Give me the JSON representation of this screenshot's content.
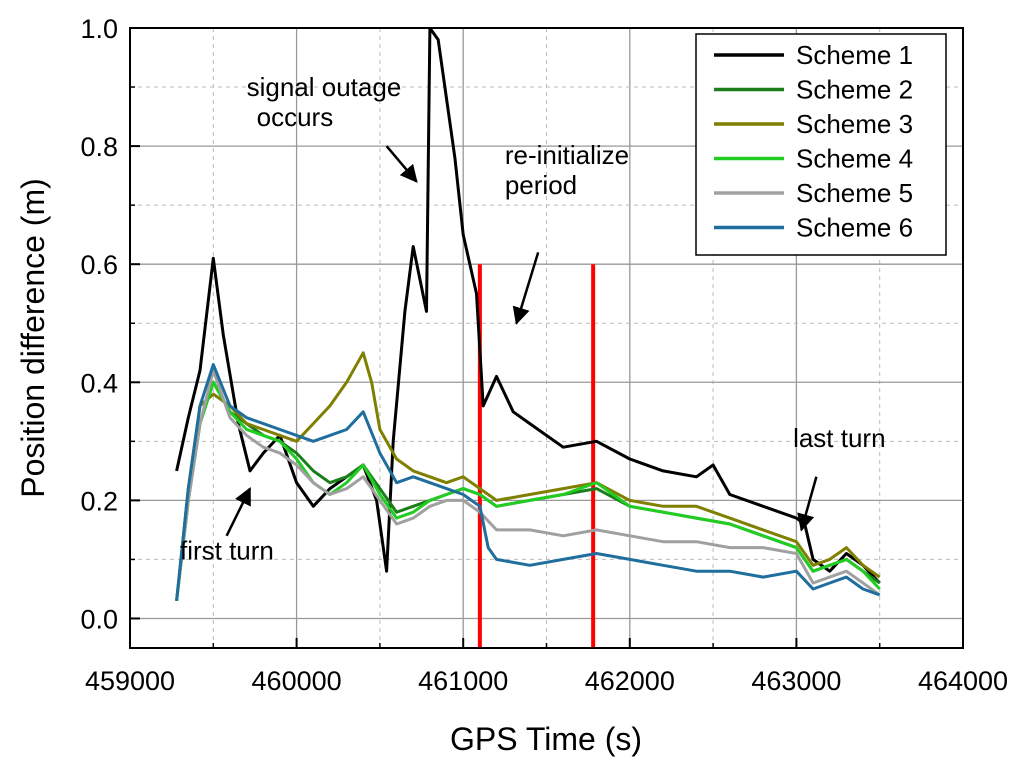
{
  "chart_data": {
    "type": "line",
    "title": "",
    "xlabel": "GPS Time (s)",
    "ylabel": "Position difference (m)",
    "xlim": [
      459000,
      464000
    ],
    "ylim": [
      -0.05,
      1.0
    ],
    "xticks": [
      459000,
      460000,
      461000,
      462000,
      463000,
      464000
    ],
    "xtick_labels": [
      "459000",
      "460000",
      "461000",
      "462000",
      "463000",
      "464000"
    ],
    "yticks": [
      0.0,
      0.2,
      0.4,
      0.6,
      0.8,
      1.0
    ],
    "ytick_labels": [
      "0.0",
      "0.2",
      "0.4",
      "0.6",
      "0.8",
      "1.0"
    ],
    "grid": true,
    "legend_position": "top-right",
    "series": [
      {
        "name": "Scheme 1",
        "color": "#000000",
        "x": [
          459280,
          459350,
          459420,
          459500,
          459560,
          459650,
          459720,
          459800,
          459900,
          460000,
          460100,
          460200,
          460300,
          460400,
          460480,
          460540,
          460580,
          460650,
          460700,
          460780,
          460800,
          460850,
          460950,
          461000,
          461080,
          461120,
          461200,
          461300,
          461400,
          461600,
          461800,
          462000,
          462200,
          462400,
          462500,
          462600,
          462800,
          463000,
          463050,
          463100,
          463200,
          463300,
          463400,
          463500
        ],
        "y": [
          0.25,
          0.34,
          0.42,
          0.61,
          0.48,
          0.33,
          0.25,
          0.28,
          0.31,
          0.23,
          0.19,
          0.22,
          0.24,
          0.26,
          0.2,
          0.08,
          0.3,
          0.52,
          0.63,
          0.52,
          1.0,
          0.98,
          0.78,
          0.65,
          0.55,
          0.36,
          0.41,
          0.35,
          0.33,
          0.29,
          0.3,
          0.27,
          0.25,
          0.24,
          0.26,
          0.21,
          0.19,
          0.17,
          0.16,
          0.1,
          0.08,
          0.11,
          0.09,
          0.06
        ]
      },
      {
        "name": "Scheme 2",
        "color": "#1a7f1a",
        "x": [
          459280,
          459350,
          459420,
          459500,
          459600,
          459700,
          459800,
          459900,
          460000,
          460100,
          460200,
          460300,
          460400,
          460500,
          460600,
          460700,
          460800,
          460900,
          461000,
          461100,
          461200,
          461400,
          461600,
          461800,
          462000,
          462200,
          462400,
          462600,
          462800,
          463000,
          463100,
          463200,
          463300,
          463400,
          463500
        ],
        "y": [
          0.03,
          0.2,
          0.33,
          0.4,
          0.35,
          0.33,
          0.31,
          0.3,
          0.28,
          0.25,
          0.23,
          0.24,
          0.26,
          0.22,
          0.18,
          0.19,
          0.2,
          0.21,
          0.22,
          0.21,
          0.19,
          0.2,
          0.21,
          0.22,
          0.19,
          0.18,
          0.17,
          0.16,
          0.14,
          0.12,
          0.08,
          0.09,
          0.1,
          0.08,
          0.06
        ]
      },
      {
        "name": "Scheme 3",
        "color": "#7f7f00",
        "x": [
          459280,
          459350,
          459420,
          459500,
          459600,
          459700,
          459800,
          459900,
          460000,
          460100,
          460200,
          460300,
          460400,
          460450,
          460500,
          460600,
          460700,
          460800,
          460900,
          461000,
          461100,
          461200,
          461400,
          461600,
          461800,
          462000,
          462200,
          462400,
          462600,
          462800,
          463000,
          463100,
          463200,
          463300,
          463400,
          463500
        ],
        "y": [
          0.03,
          0.22,
          0.36,
          0.38,
          0.36,
          0.33,
          0.32,
          0.31,
          0.3,
          0.33,
          0.36,
          0.4,
          0.45,
          0.4,
          0.32,
          0.27,
          0.25,
          0.24,
          0.23,
          0.24,
          0.22,
          0.2,
          0.21,
          0.22,
          0.23,
          0.2,
          0.19,
          0.19,
          0.17,
          0.15,
          0.13,
          0.09,
          0.1,
          0.12,
          0.09,
          0.07
        ]
      },
      {
        "name": "Scheme 4",
        "color": "#22cc22",
        "x": [
          459280,
          459350,
          459420,
          459500,
          459600,
          459700,
          459800,
          459900,
          460000,
          460100,
          460200,
          460300,
          460400,
          460500,
          460600,
          460700,
          460800,
          460900,
          461000,
          461100,
          461200,
          461400,
          461600,
          461800,
          462000,
          462200,
          462400,
          462600,
          462800,
          463000,
          463100,
          463200,
          463300,
          463400,
          463500
        ],
        "y": [
          0.03,
          0.2,
          0.33,
          0.4,
          0.35,
          0.32,
          0.31,
          0.3,
          0.27,
          0.23,
          0.21,
          0.23,
          0.26,
          0.21,
          0.17,
          0.18,
          0.2,
          0.21,
          0.22,
          0.21,
          0.19,
          0.2,
          0.21,
          0.23,
          0.19,
          0.18,
          0.17,
          0.16,
          0.14,
          0.12,
          0.08,
          0.09,
          0.1,
          0.08,
          0.05
        ]
      },
      {
        "name": "Scheme 5",
        "color": "#a0a0a0",
        "x": [
          459280,
          459350,
          459420,
          459500,
          459600,
          459700,
          459800,
          459900,
          460000,
          460100,
          460200,
          460300,
          460400,
          460500,
          460600,
          460700,
          460800,
          460900,
          461000,
          461100,
          461200,
          461400,
          461600,
          461800,
          462000,
          462200,
          462400,
          462600,
          462800,
          463000,
          463100,
          463200,
          463300,
          463400,
          463500
        ],
        "y": [
          0.03,
          0.2,
          0.33,
          0.42,
          0.34,
          0.31,
          0.29,
          0.28,
          0.26,
          0.23,
          0.21,
          0.22,
          0.24,
          0.2,
          0.16,
          0.17,
          0.19,
          0.2,
          0.2,
          0.18,
          0.15,
          0.15,
          0.14,
          0.15,
          0.14,
          0.13,
          0.13,
          0.12,
          0.12,
          0.11,
          0.06,
          0.07,
          0.08,
          0.06,
          0.04
        ]
      },
      {
        "name": "Scheme 6",
        "color": "#1f6e9e",
        "x": [
          459280,
          459350,
          459420,
          459500,
          459600,
          459700,
          459800,
          459900,
          460000,
          460100,
          460200,
          460300,
          460400,
          460500,
          460600,
          460700,
          460800,
          460900,
          461000,
          461100,
          461150,
          461200,
          461400,
          461600,
          461800,
          462000,
          462200,
          462400,
          462600,
          462800,
          463000,
          463100,
          463200,
          463300,
          463400,
          463500
        ],
        "y": [
          0.03,
          0.22,
          0.36,
          0.43,
          0.36,
          0.34,
          0.33,
          0.32,
          0.31,
          0.3,
          0.31,
          0.32,
          0.35,
          0.28,
          0.23,
          0.24,
          0.23,
          0.22,
          0.21,
          0.19,
          0.12,
          0.1,
          0.09,
          0.1,
          0.11,
          0.1,
          0.09,
          0.08,
          0.08,
          0.07,
          0.08,
          0.05,
          0.06,
          0.07,
          0.05,
          0.04
        ]
      }
    ],
    "vertical_markers": [
      {
        "x": 461100,
        "y_top": 0.6,
        "color": "#ff0000"
      },
      {
        "x": 461780,
        "y_top": 0.6,
        "color": "#ff0000"
      }
    ],
    "annotations": [
      {
        "lines": [
          "signal outage",
          "occurs"
        ],
        "text_x": 459700,
        "text_y": 0.885,
        "arrow_from": [
          460540,
          0.8
        ],
        "arrow_to": [
          460720,
          0.74
        ]
      },
      {
        "lines": [
          "re-initialize",
          "period"
        ],
        "text_x": 461250,
        "text_y": 0.77,
        "arrow_from": [
          461450,
          0.62
        ],
        "arrow_to": [
          461320,
          0.5
        ]
      },
      {
        "lines": [
          "first turn"
        ],
        "text_x": 459300,
        "text_y": 0.1,
        "arrow_from": [
          459580,
          0.14
        ],
        "arrow_to": [
          459720,
          0.22
        ]
      },
      {
        "lines": [
          "last turn"
        ],
        "text_x": 462980,
        "text_y": 0.29,
        "arrow_from": [
          463120,
          0.24
        ],
        "arrow_to": [
          463030,
          0.15
        ]
      }
    ]
  }
}
